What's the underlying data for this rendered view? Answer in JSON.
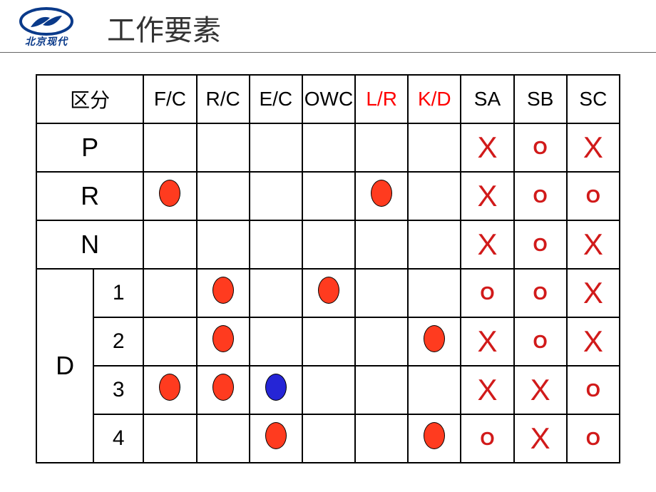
{
  "header": {
    "logo_text": "北京现代",
    "title": "工作要素",
    "logo_color": "#0a3a8a"
  },
  "table": {
    "section_label": "区分",
    "columns": [
      {
        "label": "F/C",
        "color": "#000000"
      },
      {
        "label": "R/C",
        "color": "#000000"
      },
      {
        "label": "E/C",
        "color": "#000000"
      },
      {
        "label": "OWC",
        "color": "#000000"
      },
      {
        "label": "L/R",
        "color": "#ff0000"
      },
      {
        "label": "K/D",
        "color": "#ff0000"
      },
      {
        "label": "SA",
        "color": "#000000"
      },
      {
        "label": "SB",
        "color": "#000000"
      },
      {
        "label": "SC",
        "color": "#000000"
      }
    ],
    "rows": [
      {
        "label": "P",
        "sub": null,
        "cells": [
          "",
          "",
          "",
          "",
          "",
          "",
          "x",
          "o",
          "x"
        ]
      },
      {
        "label": "R",
        "sub": null,
        "cells": [
          "red",
          "",
          "",
          "",
          "red",
          "",
          "x",
          "o",
          "o"
        ]
      },
      {
        "label": "N",
        "sub": null,
        "cells": [
          "",
          "",
          "",
          "",
          "",
          "",
          "x",
          "o",
          "x"
        ]
      },
      {
        "label": "D",
        "sub": "1",
        "cells": [
          "",
          "red",
          "",
          "red",
          "",
          "",
          "o",
          "o",
          "x"
        ]
      },
      {
        "label": null,
        "sub": "2",
        "cells": [
          "",
          "red",
          "",
          "",
          "",
          "red",
          "x",
          "o",
          "x"
        ]
      },
      {
        "label": null,
        "sub": "3",
        "cells": [
          "red",
          "red",
          "blue",
          "",
          "",
          "",
          "x",
          "x",
          "o"
        ]
      },
      {
        "label": null,
        "sub": "4",
        "cells": [
          "",
          "",
          "red",
          "",
          "",
          "red",
          "o",
          "x",
          "o"
        ]
      }
    ],
    "marks": {
      "x_glyph": "X",
      "o_glyph": "O",
      "x_color": "#d11a1a",
      "o_color": "#d11a1a",
      "red_fill": "#ff3b1f",
      "blue_fill": "#2525d6"
    }
  }
}
